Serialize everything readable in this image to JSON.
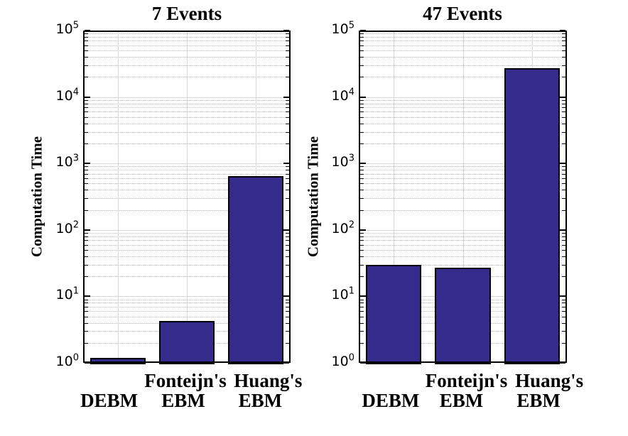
{
  "figure": {
    "background": "#ffffff",
    "text_color": "#000000"
  },
  "chart_data": [
    {
      "type": "bar",
      "title": "7 Events",
      "xlabel": "",
      "ylabel": "Computation Time",
      "yscale": "log",
      "ylim": [
        1,
        100000
      ],
      "grid": true,
      "legend": "none",
      "ytick_base": "10",
      "ytick_exponents": [
        "0",
        "1",
        "2",
        "3",
        "4",
        "5"
      ],
      "categories": [
        "DEBM",
        "Fonteijn's EBM",
        "Huang's EBM"
      ],
      "category_lines": [
        [
          "",
          "DEBM"
        ],
        [
          "Fonteijn's",
          "EBM"
        ],
        [
          "Huang's",
          "EBM"
        ]
      ],
      "values": [
        1.2,
        4.3,
        650
      ],
      "bar_color": "#352b8c",
      "bar_edge_color": "#000000"
    },
    {
      "type": "bar",
      "title": "47 Events",
      "xlabel": "",
      "ylabel": "Computation Time",
      "yscale": "log",
      "ylim": [
        1,
        100000
      ],
      "grid": true,
      "legend": "none",
      "ytick_base": "10",
      "ytick_exponents": [
        "0",
        "1",
        "2",
        "3",
        "4",
        "5"
      ],
      "categories": [
        "DEBM",
        "Fonteijn's EBM",
        "Huang's EBM"
      ],
      "category_lines": [
        [
          "",
          "DEBM"
        ],
        [
          "Fonteijn's",
          "EBM"
        ],
        [
          "Huang's",
          "EBM"
        ]
      ],
      "values": [
        30,
        27,
        27000
      ],
      "bar_color": "#352b8c",
      "bar_edge_color": "#000000"
    }
  ]
}
